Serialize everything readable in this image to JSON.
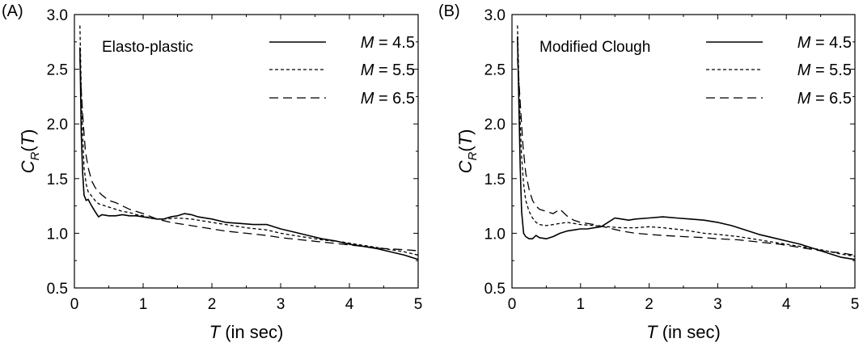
{
  "chart_data": [
    {
      "type": "line",
      "panel_label": "(A)",
      "annotation": "Elasto-plastic",
      "xlabel_var": "T",
      "xlabel_unit": " (in sec)",
      "ylabel_var": "C",
      "ylabel_sub": "R",
      "ylabel_arg": "T",
      "xlim": [
        0,
        5
      ],
      "ylim": [
        0.5,
        3.0
      ],
      "xticks": [
        "0",
        "1",
        "2",
        "3",
        "4",
        "5"
      ],
      "yticks": [
        "0.5",
        "1.0",
        "1.5",
        "2.0",
        "2.5",
        "3.0"
      ],
      "grid": false,
      "legend_position": "top-right",
      "series": [
        {
          "name": "M = 4.5",
          "legend_var": "M",
          "legend_val": " = 4.5",
          "style": "solid",
          "x": [
            0.08,
            0.1,
            0.12,
            0.14,
            0.17,
            0.2,
            0.25,
            0.3,
            0.35,
            0.4,
            0.5,
            0.6,
            0.7,
            0.8,
            0.9,
            1.0,
            1.1,
            1.2,
            1.3,
            1.4,
            1.5,
            1.6,
            1.7,
            1.8,
            2.0,
            2.2,
            2.4,
            2.6,
            2.8,
            3.0,
            3.2,
            3.4,
            3.6,
            3.8,
            4.0,
            4.2,
            4.4,
            4.6,
            4.8,
            5.0
          ],
          "y": [
            2.7,
            1.9,
            1.55,
            1.35,
            1.3,
            1.31,
            1.25,
            1.2,
            1.15,
            1.17,
            1.16,
            1.16,
            1.17,
            1.16,
            1.16,
            1.15,
            1.14,
            1.13,
            1.13,
            1.15,
            1.16,
            1.18,
            1.17,
            1.15,
            1.13,
            1.1,
            1.09,
            1.08,
            1.08,
            1.04,
            1.01,
            0.98,
            0.95,
            0.93,
            0.9,
            0.88,
            0.86,
            0.83,
            0.8,
            0.76
          ]
        },
        {
          "name": "M = 5.5",
          "legend_var": "M",
          "legend_val": " = 5.5",
          "style": "short-dash",
          "x": [
            0.08,
            0.1,
            0.12,
            0.14,
            0.17,
            0.2,
            0.25,
            0.3,
            0.35,
            0.4,
            0.5,
            0.6,
            0.7,
            0.8,
            0.9,
            1.0,
            1.1,
            1.2,
            1.3,
            1.5,
            1.7,
            2.0,
            2.2,
            2.5,
            2.8,
            3.0,
            3.3,
            3.6,
            3.9,
            4.2,
            4.5,
            4.8,
            5.0
          ],
          "y": [
            2.9,
            2.3,
            1.9,
            1.6,
            1.45,
            1.38,
            1.34,
            1.3,
            1.27,
            1.26,
            1.24,
            1.22,
            1.2,
            1.19,
            1.17,
            1.16,
            1.14,
            1.13,
            1.13,
            1.14,
            1.13,
            1.1,
            1.08,
            1.05,
            1.03,
            1.0,
            0.97,
            0.94,
            0.92,
            0.89,
            0.86,
            0.83,
            0.8
          ]
        },
        {
          "name": "M = 6.5",
          "legend_var": "M",
          "legend_val": " = 6.5",
          "style": "long-dash",
          "x": [
            0.08,
            0.1,
            0.13,
            0.16,
            0.2,
            0.25,
            0.3,
            0.35,
            0.4,
            0.5,
            0.6,
            0.7,
            0.8,
            0.9,
            1.0,
            1.2,
            1.4,
            1.6,
            1.8,
            2.0,
            2.2,
            2.5,
            2.8,
            3.0,
            3.3,
            3.6,
            3.9,
            4.2,
            4.5,
            4.8,
            5.0
          ],
          "y": [
            2.6,
            2.3,
            2.0,
            1.75,
            1.6,
            1.48,
            1.42,
            1.38,
            1.35,
            1.3,
            1.28,
            1.25,
            1.22,
            1.2,
            1.18,
            1.13,
            1.1,
            1.08,
            1.06,
            1.04,
            1.02,
            1.0,
            0.98,
            0.96,
            0.94,
            0.92,
            0.9,
            0.88,
            0.86,
            0.85,
            0.84
          ]
        }
      ]
    },
    {
      "type": "line",
      "panel_label": "(B)",
      "annotation": "Modified Clough",
      "xlabel_var": "T",
      "xlabel_unit": " (in sec)",
      "ylabel_var": "C",
      "ylabel_sub": "R",
      "ylabel_arg": "T",
      "xlim": [
        0,
        5
      ],
      "ylim": [
        0.5,
        3.0
      ],
      "xticks": [
        "0",
        "1",
        "2",
        "3",
        "4",
        "5"
      ],
      "yticks": [
        "0.5",
        "1.0",
        "1.5",
        "2.0",
        "2.5",
        "3.0"
      ],
      "grid": false,
      "legend_position": "top-right",
      "series": [
        {
          "name": "M = 4.5",
          "legend_var": "M",
          "legend_val": " = 4.5",
          "style": "solid",
          "x": [
            0.08,
            0.1,
            0.12,
            0.14,
            0.17,
            0.2,
            0.25,
            0.3,
            0.35,
            0.4,
            0.5,
            0.6,
            0.7,
            0.8,
            0.9,
            1.0,
            1.1,
            1.2,
            1.3,
            1.4,
            1.5,
            1.6,
            1.7,
            1.8,
            2.0,
            2.2,
            2.4,
            2.6,
            2.8,
            3.0,
            3.2,
            3.4,
            3.6,
            3.8,
            4.0,
            4.2,
            4.4,
            4.6,
            4.8,
            5.0
          ],
          "y": [
            2.8,
            2.2,
            1.6,
            1.2,
            1.0,
            0.97,
            0.95,
            0.95,
            0.98,
            0.96,
            0.95,
            0.97,
            1.0,
            1.02,
            1.03,
            1.04,
            1.04,
            1.05,
            1.06,
            1.1,
            1.14,
            1.13,
            1.12,
            1.13,
            1.14,
            1.15,
            1.14,
            1.13,
            1.12,
            1.1,
            1.07,
            1.03,
            0.99,
            0.96,
            0.93,
            0.9,
            0.86,
            0.82,
            0.78,
            0.76
          ]
        },
        {
          "name": "M = 5.5",
          "legend_var": "M",
          "legend_val": " = 5.5",
          "style": "short-dash",
          "x": [
            0.08,
            0.1,
            0.12,
            0.14,
            0.17,
            0.2,
            0.25,
            0.3,
            0.35,
            0.4,
            0.5,
            0.6,
            0.7,
            0.8,
            0.9,
            1.0,
            1.2,
            1.4,
            1.6,
            1.8,
            2.0,
            2.2,
            2.5,
            2.8,
            3.0,
            3.3,
            3.6,
            3.9,
            4.2,
            4.5,
            4.8,
            5.0
          ],
          "y": [
            2.9,
            2.4,
            2.0,
            1.7,
            1.45,
            1.3,
            1.2,
            1.14,
            1.1,
            1.08,
            1.07,
            1.08,
            1.09,
            1.1,
            1.09,
            1.08,
            1.07,
            1.06,
            1.05,
            1.05,
            1.06,
            1.05,
            1.03,
            1.0,
            0.99,
            0.97,
            0.94,
            0.91,
            0.88,
            0.85,
            0.81,
            0.79
          ]
        },
        {
          "name": "M = 6.5",
          "legend_var": "M",
          "legend_val": " = 6.5",
          "style": "long-dash",
          "x": [
            0.08,
            0.1,
            0.13,
            0.16,
            0.2,
            0.25,
            0.3,
            0.35,
            0.4,
            0.5,
            0.6,
            0.7,
            0.8,
            0.9,
            1.0,
            1.2,
            1.4,
            1.6,
            1.8,
            2.0,
            2.2,
            2.5,
            2.8,
            3.0,
            3.3,
            3.6,
            3.9,
            4.2,
            4.5,
            4.8,
            5.0
          ],
          "y": [
            2.6,
            2.4,
            2.1,
            1.8,
            1.55,
            1.4,
            1.3,
            1.25,
            1.22,
            1.2,
            1.18,
            1.22,
            1.16,
            1.12,
            1.1,
            1.08,
            1.05,
            1.02,
            1.0,
            0.99,
            0.98,
            0.97,
            0.96,
            0.95,
            0.94,
            0.92,
            0.9,
            0.87,
            0.84,
            0.82,
            0.8
          ]
        }
      ]
    }
  ]
}
